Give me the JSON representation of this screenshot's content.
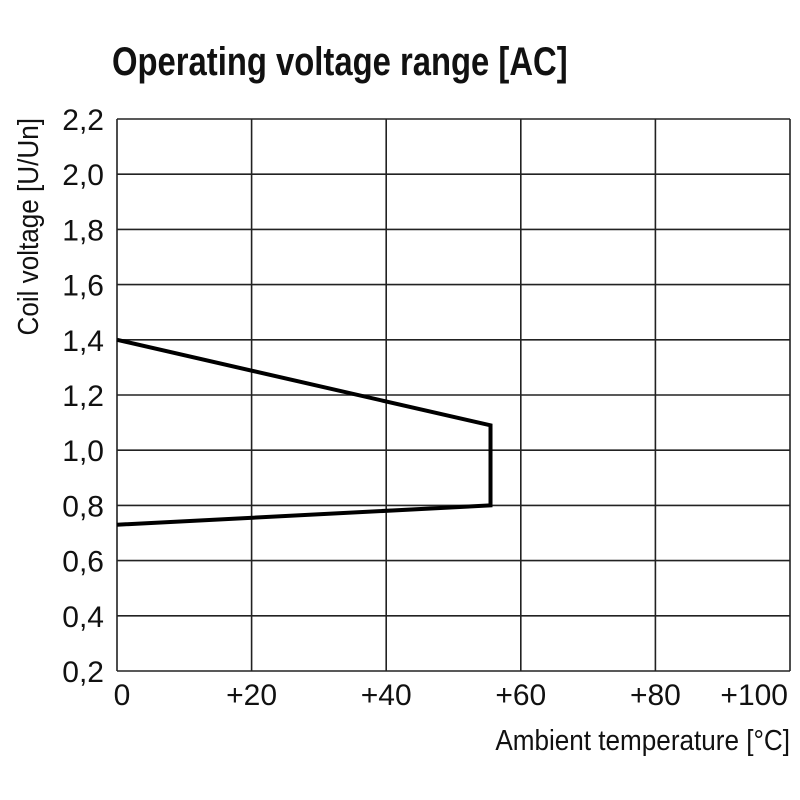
{
  "chart_data": {
    "type": "line",
    "title": "Operating voltage range [AC]",
    "xlabel": "Ambient temperature [°C]",
    "ylabel": "Coil voltage [U/Un]",
    "xlim": [
      0,
      100
    ],
    "ylim": [
      0.2,
      2.2
    ],
    "x_ticks": [
      0,
      20,
      40,
      60,
      80,
      100
    ],
    "x_tick_labels": [
      "0",
      "+20",
      "+40",
      "+60",
      "+80",
      "+100"
    ],
    "y_ticks": [
      0.2,
      0.4,
      0.6,
      0.8,
      1.0,
      1.2,
      1.4,
      1.6,
      1.8,
      2.0,
      2.2
    ],
    "y_tick_labels": [
      "0,2",
      "0,4",
      "0,6",
      "0,8",
      "1,0",
      "1,2",
      "1,4",
      "1,6",
      "1,8",
      "2,0",
      "2,2"
    ],
    "grid": true,
    "series": [
      {
        "x": [
          0,
          55.5,
          55.5,
          0
        ],
        "y": [
          1.4,
          1.09,
          0.8,
          0.73
        ],
        "color": "#000000"
      }
    ]
  }
}
